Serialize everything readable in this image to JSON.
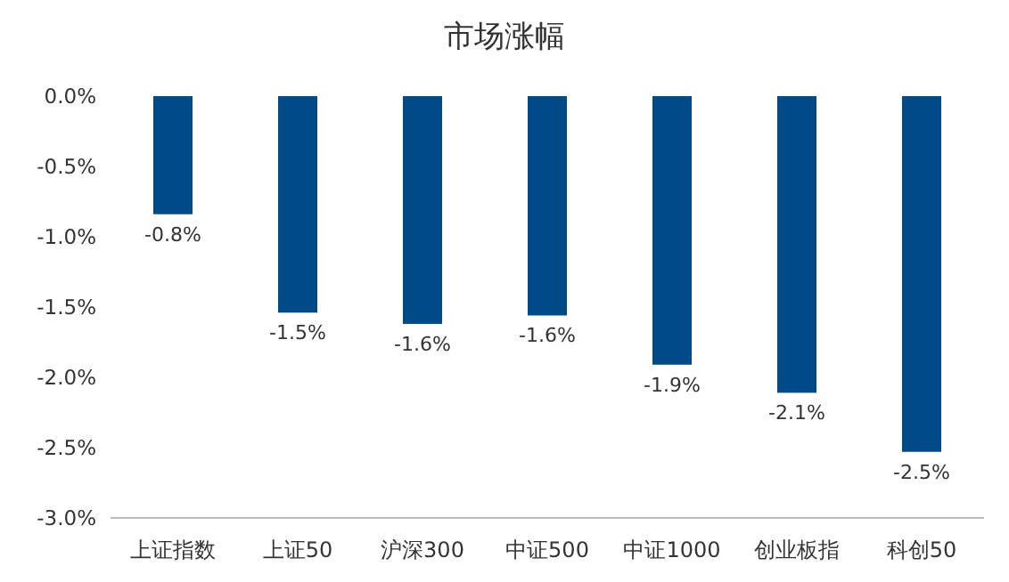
{
  "chart_data": {
    "type": "bar",
    "title": "市场涨幅",
    "categories": [
      "上证指数",
      "上证50",
      "沪深300",
      "中证500",
      "中证1000",
      "创业板指",
      "科创50"
    ],
    "values": [
      -0.84,
      -1.54,
      -1.62,
      -1.56,
      -1.91,
      -2.11,
      -2.53
    ],
    "value_labels": [
      "-0.8%",
      "-1.5%",
      "-1.6%",
      "-1.6%",
      "-1.9%",
      "-2.1%",
      "-2.5%"
    ],
    "color": "#004a87",
    "ylim": [
      -3.0,
      0.0
    ],
    "yticks": [
      {
        "value": 0.0,
        "label": "0.0%"
      },
      {
        "value": -0.5,
        "label": "-0.5%"
      },
      {
        "value": -1.0,
        "label": "-1.0%"
      },
      {
        "value": -1.5,
        "label": "-1.5%"
      },
      {
        "value": -2.0,
        "label": "-2.0%"
      },
      {
        "value": -2.5,
        "label": "-2.5%"
      },
      {
        "value": -3.0,
        "label": "-3.0%"
      }
    ]
  }
}
